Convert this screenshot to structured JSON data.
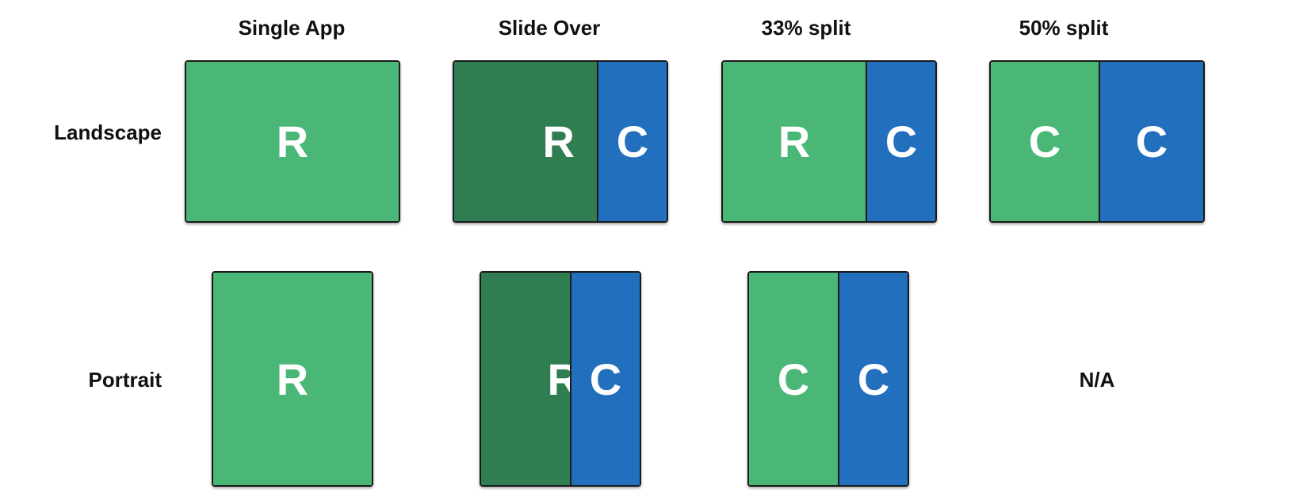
{
  "columns": [
    "Single App",
    "Slide Over",
    "33% split",
    "50% split"
  ],
  "rows": [
    "Landscape",
    "Portrait"
  ],
  "landscape": {
    "single_app": [
      "R"
    ],
    "slide_over": [
      "R",
      "C"
    ],
    "split_33": [
      "R",
      "C"
    ],
    "split_50": [
      "C",
      "C"
    ]
  },
  "portrait": {
    "single_app": [
      "R"
    ],
    "slide_over": [
      "R",
      "C"
    ],
    "split_33": [
      "C",
      "C"
    ],
    "split_50": "N/A"
  },
  "colors": {
    "primary_app": "#4bb777",
    "background_app": "#2f7d50",
    "secondary_app": "#2270bd",
    "border": "#1a1a1a"
  }
}
